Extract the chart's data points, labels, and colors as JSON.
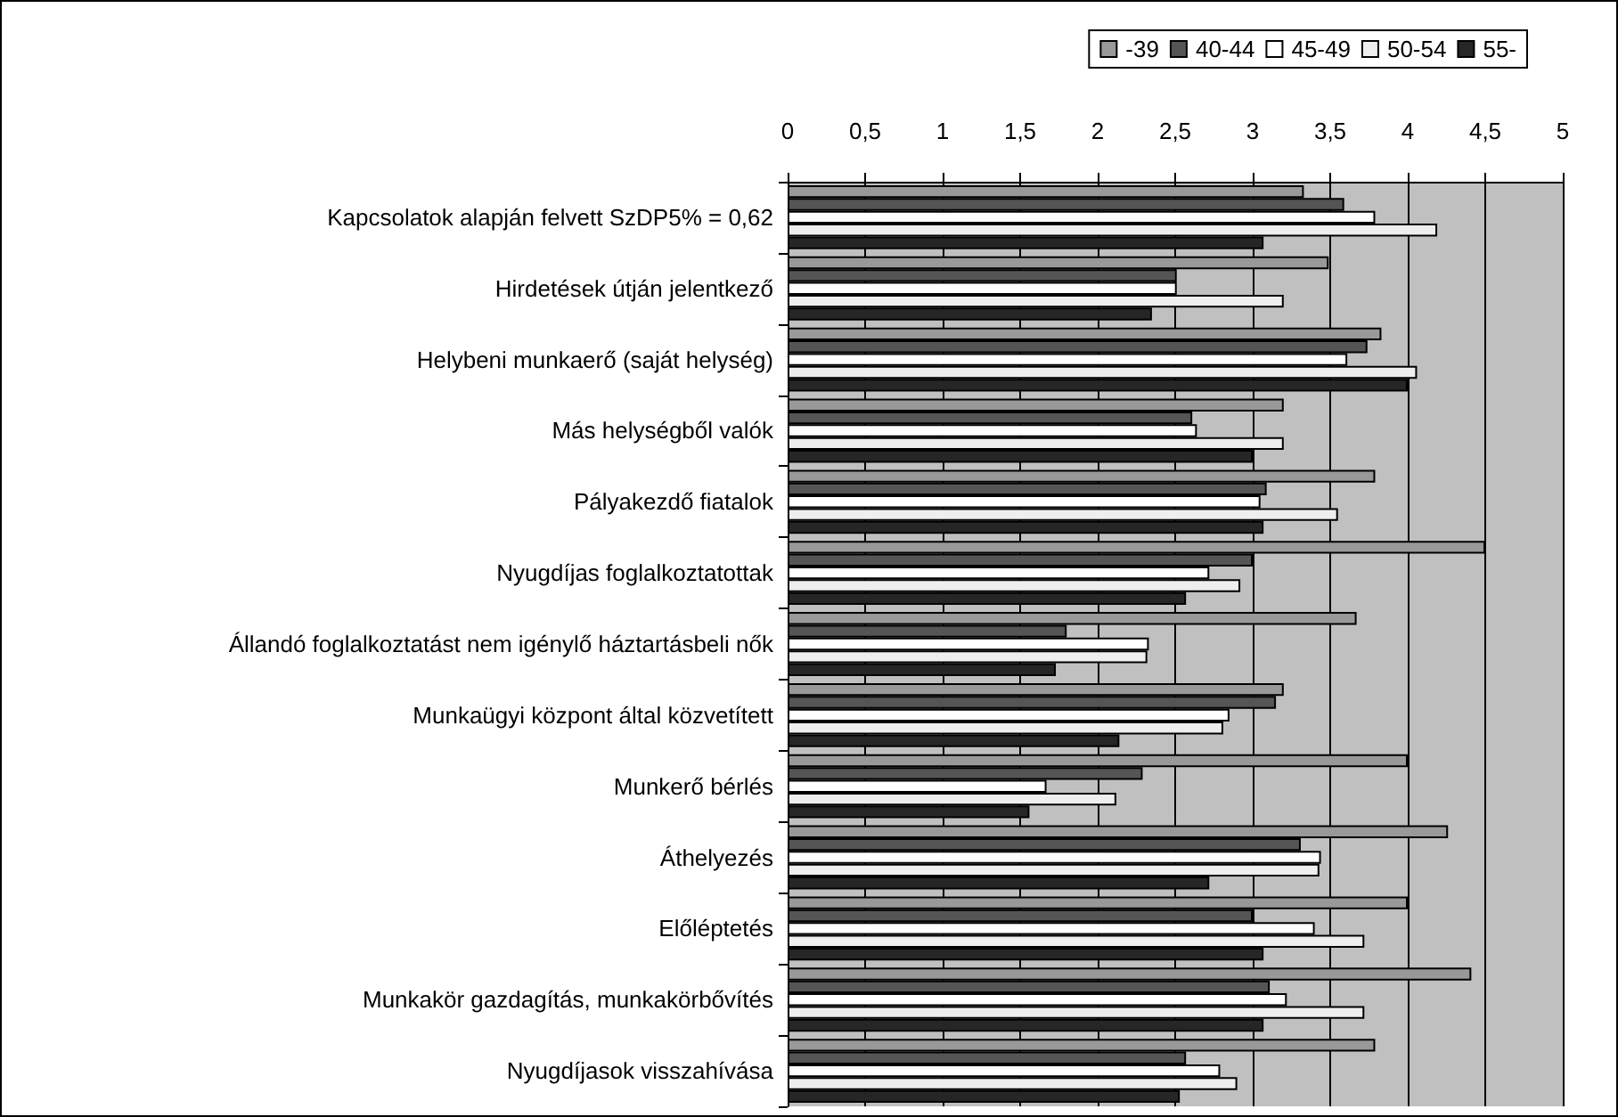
{
  "chart_data": {
    "type": "bar",
    "orientation": "horizontal",
    "legend": "top right",
    "grid": "x",
    "categories": [
      "Kapcsolatok alapján felvett SzDP5% = 0,62",
      "Hirdetések útján jelentkező",
      "Helybeni munkaerő (saját helység)",
      "Más helységből valók",
      "Pályakezdő fiatalok",
      "Nyugdíjas foglalkoztatottak",
      "Állandó foglalkoztatást nem igénylő háztartásbeli nők",
      "Munkaügyi központ által közvetített",
      "Munkerő bérlés",
      "Áthelyezés",
      "Előléptetés",
      "Munkakör gazdagítás, munkakörbővítés",
      "Nyugdíjasok visszahívása"
    ],
    "xlim": [
      0,
      5
    ],
    "xticks": [
      0,
      {
        "value": 0.5,
        "label": "0,5"
      },
      1,
      {
        "value": 1.5,
        "label": "1,5"
      },
      2,
      {
        "value": 2.5,
        "label": "2,5"
      },
      3,
      {
        "value": 3.5,
        "label": "3,5"
      },
      4,
      {
        "value": 4.5,
        "label": "4,5"
      },
      5
    ],
    "series": [
      {
        "name": "-39",
        "color": "#999999",
        "values": [
          3.33,
          3.49,
          3.83,
          3.2,
          3.79,
          4.5,
          3.67,
          3.2,
          4.0,
          4.26,
          4.0,
          4.41,
          3.79
        ]
      },
      {
        "name": "40-44",
        "color": "#555555",
        "values": [
          3.59,
          2.51,
          3.74,
          2.61,
          3.09,
          3.0,
          1.8,
          3.15,
          2.29,
          3.31,
          3.0,
          3.11,
          2.57
        ]
      },
      {
        "name": "45-49",
        "color": "#ffffff",
        "values": [
          3.79,
          2.51,
          3.61,
          2.64,
          3.05,
          2.72,
          2.33,
          2.85,
          1.67,
          3.44,
          3.4,
          3.22,
          2.79
        ]
      },
      {
        "name": "50-54",
        "color": "#eeeeee",
        "values": [
          4.19,
          3.2,
          4.06,
          3.2,
          3.55,
          2.92,
          2.32,
          2.81,
          2.12,
          3.43,
          3.72,
          3.72,
          2.9
        ]
      },
      {
        "name": "55-",
        "color": "#262626",
        "values": [
          3.07,
          2.35,
          4.0,
          3.0,
          3.07,
          2.57,
          1.73,
          2.14,
          1.56,
          2.72,
          3.07,
          3.07,
          2.53
        ]
      }
    ]
  }
}
